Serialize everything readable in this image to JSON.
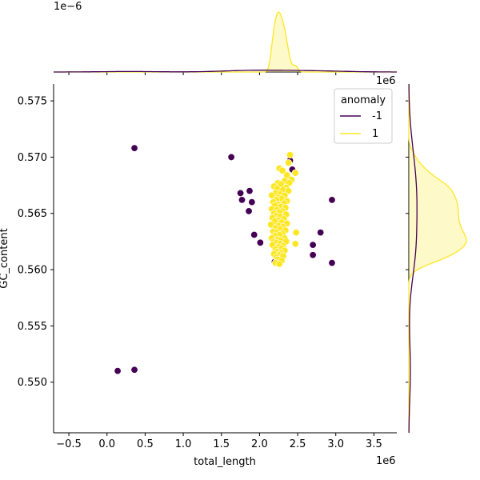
{
  "chart_data": {
    "type": "scatter",
    "title": "",
    "xlabel": "total_length",
    "ylabel": "GC_content",
    "x_scale_label": "1e6",
    "y_scale_label_top": "1e6",
    "top_marginal_scale_label": "1e−6",
    "xlim": [
      -0.7,
      3.8
    ],
    "ylim": [
      0.5455,
      0.5765
    ],
    "x_ticks": [
      -0.5,
      0.0,
      0.5,
      1.0,
      1.5,
      2.0,
      2.5,
      3.0,
      3.5
    ],
    "x_tick_labels": [
      "−0.5",
      "0.0",
      "0.5",
      "1.0",
      "1.5",
      "2.0",
      "2.5",
      "3.0",
      "3.5"
    ],
    "y_ticks": [
      0.55,
      0.555,
      0.56,
      0.565,
      0.57,
      0.575
    ],
    "y_tick_labels": [
      "0.550",
      "0.555",
      "0.560",
      "0.565",
      "0.570",
      "0.575"
    ],
    "legend": {
      "title": "anomaly",
      "placement": "top-right",
      "entries": [
        {
          "label": "-1",
          "color": "#440154"
        },
        {
          "label": "1",
          "color": "#fde725"
        }
      ]
    },
    "series": [
      {
        "name": "-1",
        "color": "#440154",
        "points": [
          [
            0.36,
            0.5708
          ],
          [
            1.63,
            0.57
          ],
          [
            2.4,
            0.5697
          ],
          [
            2.43,
            0.5689
          ],
          [
            1.87,
            0.567
          ],
          [
            1.75,
            0.5668
          ],
          [
            2.38,
            0.567
          ],
          [
            1.77,
            0.5662
          ],
          [
            1.9,
            0.566
          ],
          [
            2.95,
            0.5662
          ],
          [
            1.86,
            0.5652
          ],
          [
            2.8,
            0.5633
          ],
          [
            1.93,
            0.5631
          ],
          [
            2.01,
            0.5624
          ],
          [
            2.7,
            0.5622
          ],
          [
            2.7,
            0.5613
          ],
          [
            2.95,
            0.5606
          ],
          [
            2.2,
            0.5607
          ],
          [
            2.25,
            0.561
          ],
          [
            0.14,
            0.551
          ],
          [
            0.36,
            0.5511
          ]
        ]
      },
      {
        "name": "1",
        "color": "#fde725",
        "points": [
          [
            2.4,
            0.5702
          ],
          [
            2.38,
            0.5695
          ],
          [
            2.26,
            0.569
          ],
          [
            2.3,
            0.5688
          ],
          [
            2.47,
            0.5686
          ],
          [
            2.36,
            0.5684
          ],
          [
            2.42,
            0.568
          ],
          [
            2.33,
            0.5679
          ],
          [
            2.24,
            0.5677
          ],
          [
            2.39,
            0.5677
          ],
          [
            2.28,
            0.5676
          ],
          [
            2.19,
            0.5674
          ],
          [
            2.35,
            0.5673
          ],
          [
            2.23,
            0.5672
          ],
          [
            2.31,
            0.5671
          ],
          [
            2.38,
            0.567
          ],
          [
            2.21,
            0.5668
          ],
          [
            2.27,
            0.5667
          ],
          [
            2.16,
            0.5666
          ],
          [
            2.33,
            0.5666
          ],
          [
            2.25,
            0.5664
          ],
          [
            2.29,
            0.5663
          ],
          [
            2.22,
            0.5662
          ],
          [
            2.36,
            0.5661
          ],
          [
            2.18,
            0.566
          ],
          [
            2.32,
            0.5659
          ],
          [
            2.24,
            0.5658
          ],
          [
            2.2,
            0.5657
          ],
          [
            2.28,
            0.5656
          ],
          [
            2.34,
            0.5655
          ],
          [
            2.16,
            0.5654
          ],
          [
            2.23,
            0.5653
          ],
          [
            2.3,
            0.5652
          ],
          [
            2.26,
            0.5651
          ],
          [
            2.19,
            0.565
          ],
          [
            2.35,
            0.5649
          ],
          [
            2.22,
            0.5648
          ],
          [
            2.27,
            0.5647
          ],
          [
            2.17,
            0.5646
          ],
          [
            2.32,
            0.5645
          ],
          [
            2.24,
            0.5644
          ],
          [
            2.2,
            0.5643
          ],
          [
            2.29,
            0.5642
          ],
          [
            2.36,
            0.5641
          ],
          [
            2.15,
            0.564
          ],
          [
            2.25,
            0.5639
          ],
          [
            2.31,
            0.5638
          ],
          [
            2.21,
            0.5637
          ],
          [
            2.27,
            0.5636
          ],
          [
            2.34,
            0.5635
          ],
          [
            2.18,
            0.5634
          ],
          [
            2.23,
            0.5633
          ],
          [
            2.3,
            0.5632
          ],
          [
            2.26,
            0.5631
          ],
          [
            2.2,
            0.563
          ],
          [
            2.48,
            0.5633
          ],
          [
            2.16,
            0.5628
          ],
          [
            2.33,
            0.5628
          ],
          [
            2.24,
            0.5627
          ],
          [
            2.28,
            0.5626
          ],
          [
            2.19,
            0.5625
          ],
          [
            2.35,
            0.5625
          ],
          [
            2.22,
            0.5624
          ],
          [
            2.27,
            0.5623
          ],
          [
            2.17,
            0.5622
          ],
          [
            2.31,
            0.5621
          ],
          [
            2.25,
            0.562
          ],
          [
            2.29,
            0.5619
          ],
          [
            2.47,
            0.5623
          ],
          [
            2.21,
            0.5618
          ],
          [
            2.33,
            0.5617
          ],
          [
            2.23,
            0.5616
          ],
          [
            2.28,
            0.5615
          ],
          [
            2.19,
            0.5614
          ],
          [
            2.26,
            0.5613
          ],
          [
            2.31,
            0.5612
          ],
          [
            2.22,
            0.5611
          ],
          [
            2.24,
            0.5609
          ],
          [
            2.29,
            0.5608
          ],
          [
            2.21,
            0.5606
          ],
          [
            2.26,
            0.5605
          ]
        ]
      }
    ]
  }
}
